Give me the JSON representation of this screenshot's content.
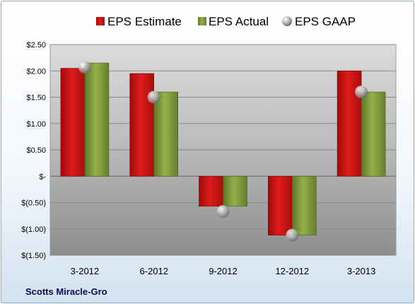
{
  "company": "Scotts Miracle-Gro",
  "colors": {
    "estimate": "#cc1111",
    "actual": "#7f9a3a",
    "gaap": "#b7b7b7"
  },
  "chart_data": {
    "type": "bar",
    "categories": [
      "3-2012",
      "6-2012",
      "9-2012",
      "12-2012",
      "3-2013"
    ],
    "series": [
      {
        "name": "EPS Estimate",
        "values": [
          2.05,
          1.95,
          -0.57,
          -1.12,
          2.0
        ]
      },
      {
        "name": "EPS Actual",
        "values": [
          2.15,
          1.6,
          -0.57,
          -1.12,
          1.6
        ]
      }
    ],
    "overlay": {
      "name": "EPS GAAP",
      "type": "scatter",
      "values": [
        2.07,
        1.5,
        -0.67,
        -1.12,
        1.6
      ]
    },
    "yticks": [
      {
        "value": 2.5,
        "label": "$2.50"
      },
      {
        "value": 2.0,
        "label": "$2.00"
      },
      {
        "value": 1.5,
        "label": "$1.50"
      },
      {
        "value": 1.0,
        "label": "$1.00"
      },
      {
        "value": 0.5,
        "label": "$0.50"
      },
      {
        "value": 0.0,
        "label": "$-"
      },
      {
        "value": -0.5,
        "label": "$(0.50)"
      },
      {
        "value": -1.0,
        "label": "$(1.00)"
      },
      {
        "value": -1.5,
        "label": "$(1.50)"
      }
    ],
    "ylim": [
      -1.5,
      2.5
    ],
    "grid": true,
    "legend": "top"
  }
}
